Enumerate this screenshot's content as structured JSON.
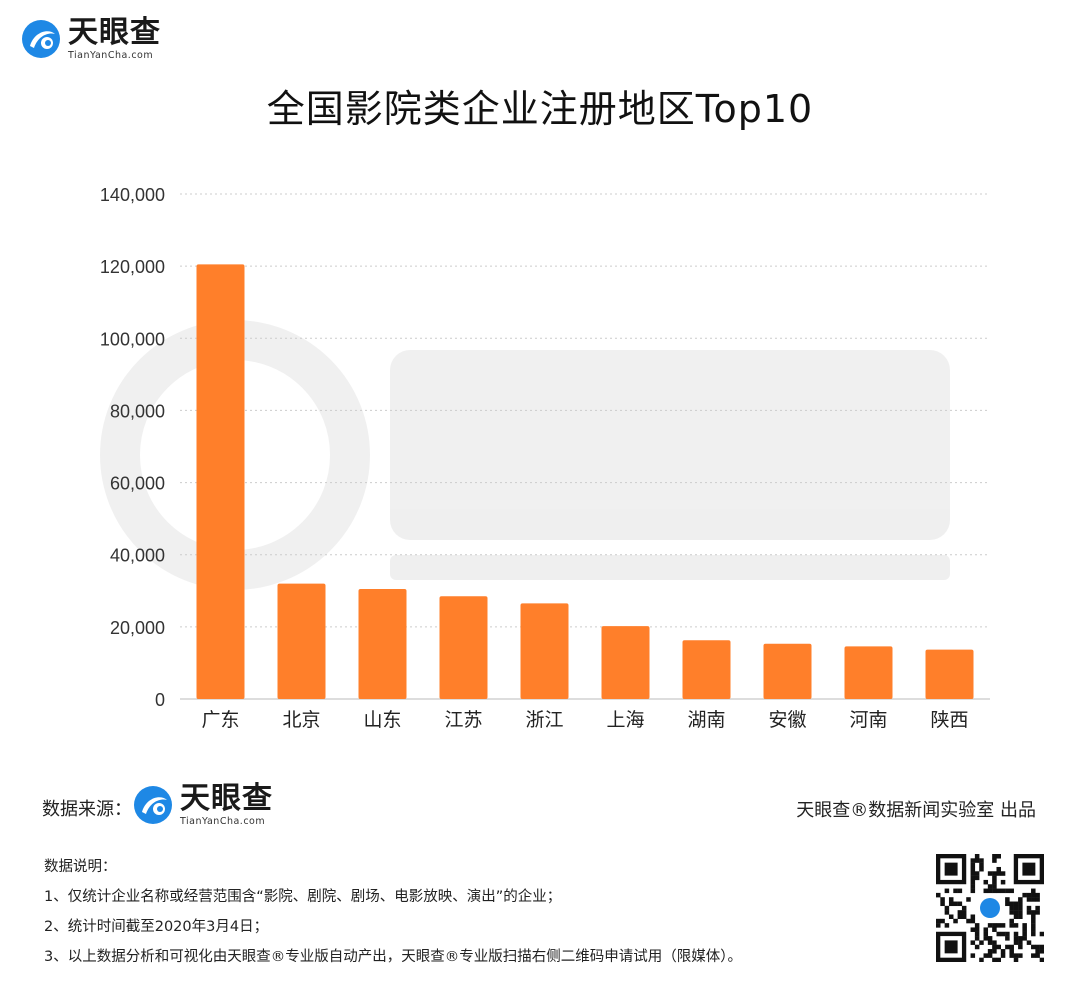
{
  "brand": {
    "name_cn": "天眼查",
    "name_en": "TianYanCha.com"
  },
  "chart_data": {
    "type": "bar",
    "title": "全国影院类企业注册地区Top10",
    "categories": [
      "广东",
      "北京",
      "山东",
      "江苏",
      "浙江",
      "上海",
      "湖南",
      "安徽",
      "河南",
      "陕西"
    ],
    "values": [
      120500,
      32000,
      30500,
      28500,
      26500,
      20200,
      16300,
      15300,
      14600,
      13700
    ],
    "ylim": [
      0,
      140000
    ],
    "yticks": [
      0,
      20000,
      40000,
      60000,
      80000,
      100000,
      120000,
      140000
    ],
    "ytick_labels": [
      "0",
      "20,000",
      "40,000",
      "60,000",
      "80,000",
      "100,000",
      "120,000",
      "140,000"
    ],
    "xlabel": "",
    "ylabel": "",
    "grid": "horizontal-dotted",
    "bar_color": "#FF7F2A"
  },
  "footer": {
    "source_label": "数据来源：",
    "credit": "天眼查®数据新闻实验室 出品",
    "notes_title": "数据说明：",
    "notes": [
      "1、仅统计企业名称或经营范围含“影院、剧院、剧场、电影放映、演出”的企业；",
      "2、统计时间截至2020年3月4日；",
      "3、以上数据分析和可视化由天眼查®专业版自动产出，天眼查®专业版扫描右侧二维码申请试用（限媒体）。"
    ]
  },
  "colors": {
    "logo_blue": "#1E88E5",
    "bar": "#FF7F2A",
    "grid": "#cccccc"
  }
}
